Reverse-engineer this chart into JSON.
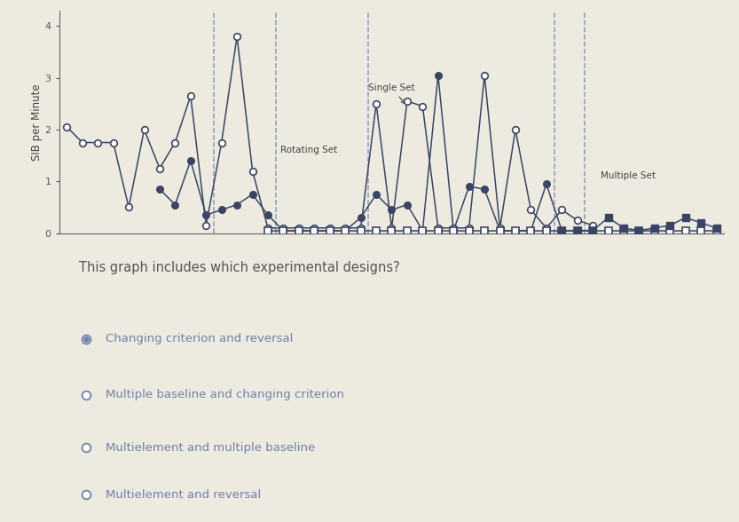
{
  "background_color": "#edeae0",
  "ylabel": "SIB per Minute",
  "ylim": [
    0,
    4.3
  ],
  "yticks": [
    0,
    1,
    2,
    3,
    4
  ],
  "question": "This graph includes which experimental designs?",
  "options": [
    {
      "text": "Changing criterion and reversal",
      "selected": true
    },
    {
      "text": "Multiple baseline and changing criterion",
      "selected": false
    },
    {
      "text": "Multielement and multiple baseline",
      "selected": false
    },
    {
      "text": "Multielement and reversal",
      "selected": false
    }
  ],
  "text_color": "#7080aa",
  "line_color": "#3a4565",
  "vline_color": "#9099bb",
  "vline_positions": [
    10.5,
    14.5,
    20.5,
    32.5,
    34.5
  ],
  "oc_x": [
    1,
    2,
    3,
    4,
    5,
    6,
    7,
    8,
    9,
    10,
    11,
    12,
    13,
    14,
    15,
    16,
    17,
    18,
    19,
    20,
    21,
    22,
    23,
    24,
    25,
    26,
    27,
    28,
    29,
    30,
    31,
    32,
    33,
    34,
    35
  ],
  "oc_y": [
    2.05,
    1.75,
    1.75,
    1.75,
    0.5,
    2.0,
    1.25,
    1.75,
    2.65,
    0.15,
    1.75,
    3.8,
    1.2,
    0.1,
    0.1,
    0.1,
    0.1,
    0.1,
    0.1,
    0.1,
    2.5,
    0.1,
    2.55,
    2.45,
    0.1,
    0.1,
    0.1,
    3.05,
    0.1,
    2.0,
    0.45,
    0.1,
    0.45,
    0.25,
    0.15
  ],
  "fc_x": [
    7,
    8,
    9,
    10,
    11,
    12,
    13,
    14,
    15,
    16,
    17,
    18,
    19,
    20,
    21,
    22,
    23,
    24,
    25,
    26,
    27,
    28,
    29,
    30,
    31,
    32,
    33,
    34
  ],
  "fc_y": [
    0.85,
    0.55,
    1.4,
    0.35,
    0.45,
    0.55,
    0.75,
    0.35,
    0.05,
    0.05,
    0.05,
    0.05,
    0.05,
    0.3,
    0.75,
    0.45,
    0.55,
    0.05,
    3.05,
    0.05,
    0.9,
    0.85,
    0.05,
    0.05,
    0.05,
    0.95,
    0.05,
    0.05
  ],
  "os_x": [
    14,
    15,
    16,
    17,
    18,
    19,
    20,
    21,
    22,
    23,
    24,
    25,
    26,
    27,
    28,
    29,
    30,
    31,
    32,
    33,
    34,
    35,
    36,
    37,
    38,
    39,
    40,
    41,
    42,
    43
  ],
  "os_y": [
    0.05,
    0.05,
    0.05,
    0.05,
    0.05,
    0.05,
    0.05,
    0.05,
    0.05,
    0.05,
    0.05,
    0.05,
    0.05,
    0.05,
    0.05,
    0.05,
    0.05,
    0.05,
    0.05,
    0.05,
    0.05,
    0.05,
    0.05,
    0.05,
    0.05,
    0.05,
    0.05,
    0.05,
    0.05,
    0.05
  ],
  "fs_x": [
    33,
    34,
    35,
    36,
    37,
    38,
    39,
    40,
    41,
    42,
    43
  ],
  "fs_y": [
    0.05,
    0.05,
    0.05,
    0.3,
    0.1,
    0.05,
    0.1,
    0.15,
    0.3,
    0.2,
    0.1
  ]
}
